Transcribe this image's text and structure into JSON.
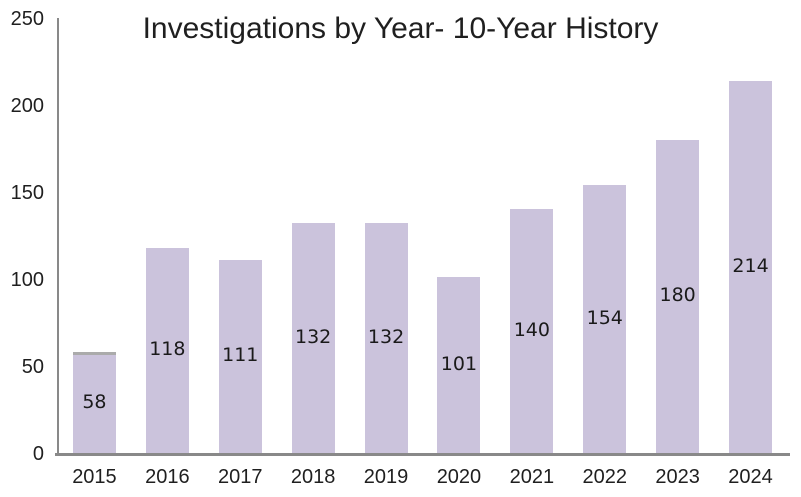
{
  "chart_data": {
    "type": "bar",
    "title": "Investigations by Year- 10-Year History",
    "categories": [
      "2015",
      "2016",
      "2017",
      "2018",
      "2019",
      "2020",
      "2021",
      "2022",
      "2023",
      "2024"
    ],
    "values": [
      58,
      118,
      111,
      132,
      132,
      101,
      140,
      154,
      180,
      214
    ],
    "xlabel": "",
    "ylabel": "",
    "ylim": [
      0,
      250
    ],
    "yticks": [
      0,
      50,
      100,
      150,
      200,
      250
    ],
    "grid": false,
    "legend": false,
    "data_labels": "inside-center",
    "colors": {
      "bar_fill": "#CBC3DC",
      "axis_line": "#898989",
      "first_bar_top_cap": "#ABABAB",
      "text": "#1f1f1f",
      "background": "#ffffff"
    }
  }
}
